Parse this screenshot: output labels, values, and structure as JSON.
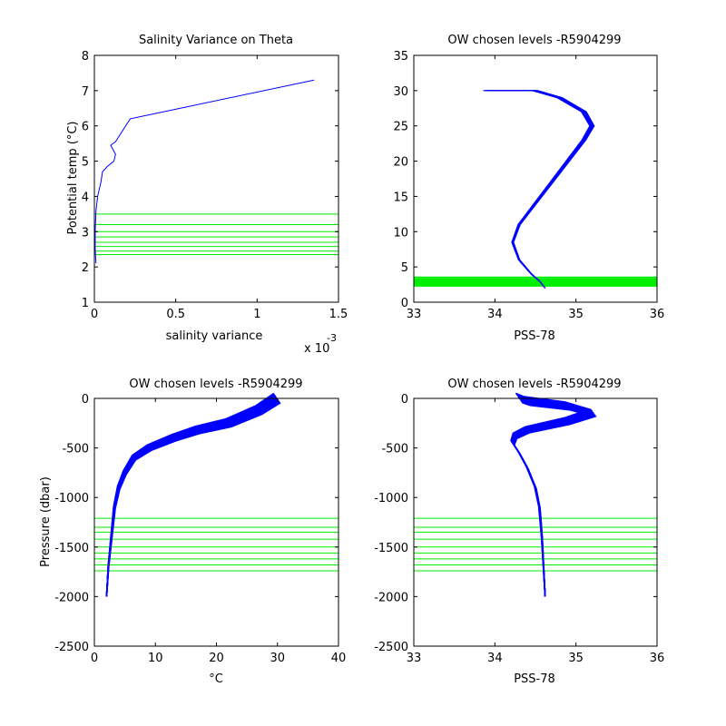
{
  "colors": {
    "profile": "#0000ff",
    "levels": "#00ee00",
    "axis": "#000000"
  },
  "chart_data": [
    {
      "type": "line",
      "title": "Salinity Variance on Theta",
      "xlabel": "salinity variance",
      "ylabel": "Potential temp (°C)",
      "xlim": [
        0,
        1.5
      ],
      "ylim": [
        1,
        8
      ],
      "xticks": [
        0,
        0.5,
        1,
        1.5
      ],
      "xtick_labels": [
        "0",
        "0.5",
        "1",
        "1.5"
      ],
      "yticks": [
        1,
        2,
        3,
        4,
        5,
        6,
        7,
        8
      ],
      "ytick_labels": [
        "1",
        "2",
        "3",
        "4",
        "5",
        "6",
        "7",
        "8"
      ],
      "x_exponent_label": "x 10",
      "x_exponent": "-3",
      "series": [
        {
          "x": [
            0.01,
            0.005,
            0.005,
            0.01,
            0.02,
            0.04,
            0.05,
            0.08,
            0.12,
            0.13,
            0.1,
            0.13,
            0.22,
            1.35
          ],
          "y": [
            2.1,
            2.5,
            3.0,
            3.6,
            4.0,
            4.4,
            4.7,
            4.85,
            5.0,
            5.2,
            5.45,
            5.55,
            6.2,
            7.3
          ]
        }
      ],
      "levels": [
        2.35,
        2.45,
        2.58,
        2.7,
        2.85,
        3.0,
        3.2,
        3.5
      ]
    },
    {
      "type": "line",
      "title": "OW chosen levels -R5904299",
      "xlabel": "PSS-78",
      "ylabel": "",
      "xlim": [
        33,
        36
      ],
      "ylim": [
        0,
        35
      ],
      "xticks": [
        33,
        34,
        35,
        36
      ],
      "xtick_labels": [
        "33",
        "34",
        "35",
        "36"
      ],
      "yticks": [
        0,
        5,
        10,
        15,
        20,
        25,
        30,
        35
      ],
      "ytick_labels": [
        "0",
        "5",
        "10",
        "15",
        "20",
        "25",
        "30",
        "35"
      ],
      "series": [
        {
          "x": [
            34.62,
            34.55,
            34.45,
            34.3,
            34.22,
            34.3,
            34.5,
            34.7,
            34.9,
            35.1,
            35.2,
            35.1,
            34.8,
            34.5,
            33.9
          ],
          "y": [
            2,
            3,
            4,
            6,
            8.5,
            11,
            14,
            17,
            20,
            23,
            25,
            27,
            29,
            30,
            30
          ]
        }
      ],
      "levels": [
        2.35,
        2.45,
        2.58,
        2.7,
        2.85,
        3.0,
        3.2,
        3.5
      ]
    },
    {
      "type": "line",
      "title": "OW chosen levels -R5904299",
      "xlabel": "°C",
      "ylabel": "Pressure (dbar)",
      "xlim": [
        0,
        40
      ],
      "ylim": [
        -2500,
        0
      ],
      "xticks": [
        0,
        10,
        20,
        30,
        40
      ],
      "xtick_labels": [
        "0",
        "10",
        "20",
        "30",
        "40"
      ],
      "yticks": [
        -2500,
        -2000,
        -1500,
        -1000,
        -500,
        0
      ],
      "ytick_labels": [
        "-2500",
        "-2000",
        "-1500",
        "-1000",
        "-500",
        "0"
      ],
      "series": [
        {
          "x": [
            2,
            2.3,
            2.8,
            3.3,
            4,
            5,
            6.5,
            9,
            13,
            17,
            22,
            27,
            30
          ],
          "y": [
            -2000,
            -1700,
            -1400,
            -1100,
            -900,
            -750,
            -600,
            -500,
            -400,
            -320,
            -250,
            -120,
            0
          ]
        }
      ],
      "levels": [
        -1210,
        -1300,
        -1350,
        -1420,
        -1500,
        -1560,
        -1620,
        -1680,
        -1740
      ]
    },
    {
      "type": "line",
      "title": "OW chosen levels -R5904299",
      "xlabel": "PSS-78",
      "ylabel": "",
      "xlim": [
        33,
        36
      ],
      "ylim": [
        -2500,
        0
      ],
      "xticks": [
        33,
        34,
        35,
        36
      ],
      "xtick_labels": [
        "33",
        "34",
        "35",
        "36"
      ],
      "yticks": [
        -2500,
        -2000,
        -1500,
        -1000,
        -500,
        0
      ],
      "ytick_labels": [
        "-2500",
        "-2000",
        "-1500",
        "-1000",
        "-500",
        "0"
      ],
      "series": [
        {
          "x": [
            34.62,
            34.6,
            34.58,
            34.55,
            34.5,
            34.4,
            34.3,
            34.22,
            34.25,
            34.4,
            34.9,
            35.2,
            34.9,
            34.4,
            34.3
          ],
          "y": [
            -2000,
            -1700,
            -1400,
            -1100,
            -900,
            -700,
            -550,
            -450,
            -380,
            -320,
            -230,
            -150,
            -80,
            -30,
            0
          ]
        }
      ],
      "levels": [
        -1210,
        -1300,
        -1350,
        -1420,
        -1500,
        -1560,
        -1620,
        -1680,
        -1740
      ]
    }
  ]
}
